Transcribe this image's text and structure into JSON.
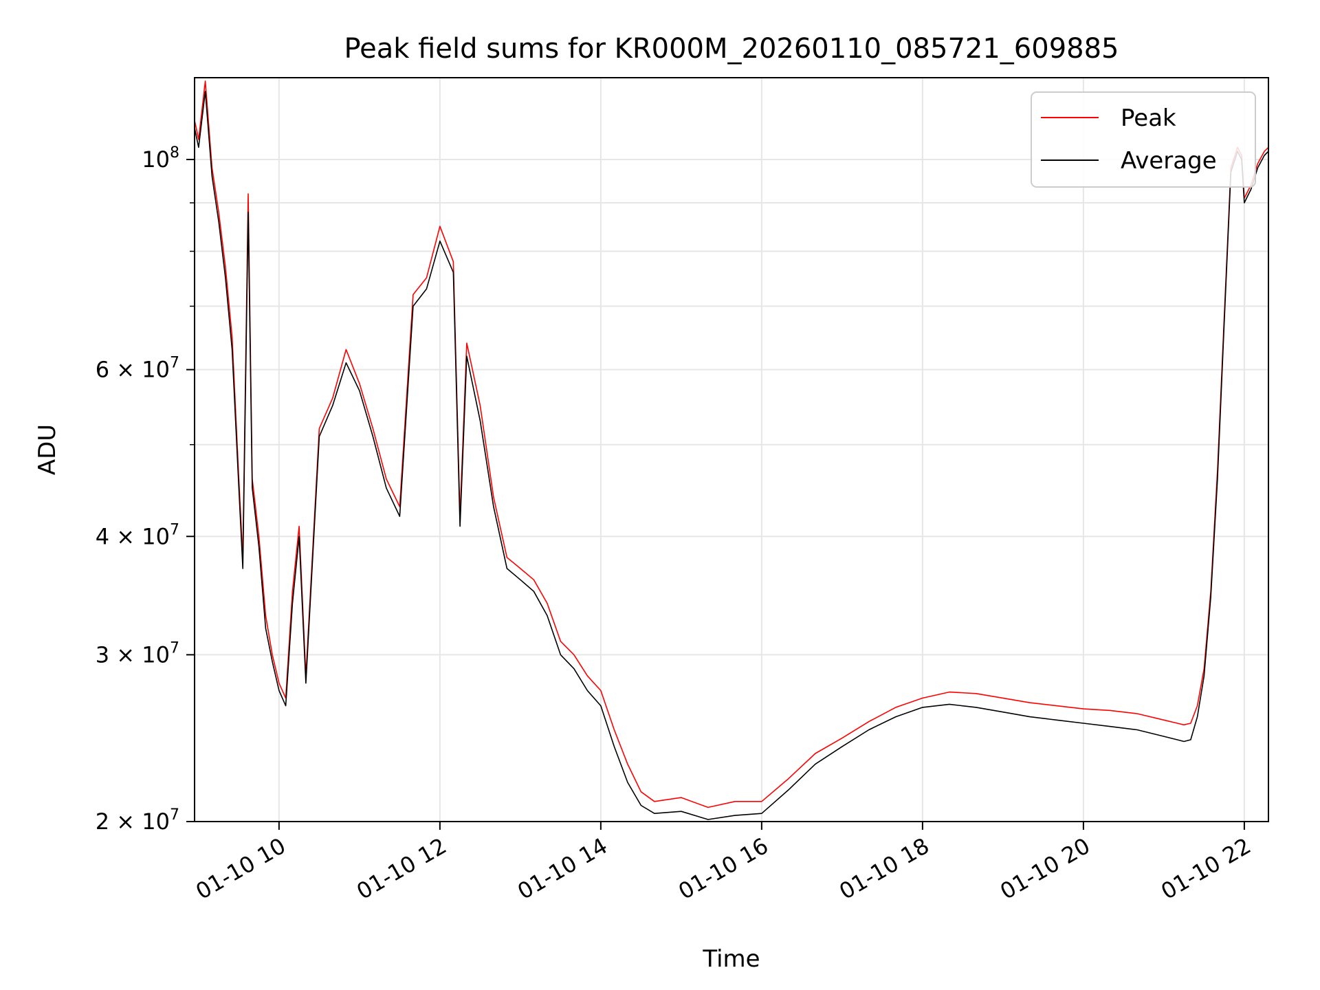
{
  "chart_data": {
    "type": "line",
    "title": "Peak field sums for KR000M_20260110_085721_609885",
    "xlabel": "Time",
    "ylabel": "ADU",
    "yscale": "log",
    "grid": true,
    "legend": "top-right",
    "xlim": [
      "2026-01-10 08:57",
      "2026-01-10 22:18"
    ],
    "ylim": [
      20000000,
      122000000
    ],
    "x_ticks": [
      {
        "t": "2026-01-10 10:00",
        "label": "01-10 10"
      },
      {
        "t": "2026-01-10 12:00",
        "label": "01-10 12"
      },
      {
        "t": "2026-01-10 14:00",
        "label": "01-10 14"
      },
      {
        "t": "2026-01-10 16:00",
        "label": "01-10 16"
      },
      {
        "t": "2026-01-10 18:00",
        "label": "01-10 18"
      },
      {
        "t": "2026-01-10 20:00",
        "label": "01-10 20"
      },
      {
        "t": "2026-01-10 22:00",
        "label": "01-10 22"
      }
    ],
    "y_ticks": [
      {
        "v": 20000000,
        "base": "2 × 10",
        "exp": "7"
      },
      {
        "v": 30000000,
        "base": "3 × 10",
        "exp": "7"
      },
      {
        "v": 40000000,
        "base": "4 × 10",
        "exp": "7"
      },
      {
        "v": 60000000,
        "base": "6 × 10",
        "exp": "7"
      },
      {
        "v": 100000000,
        "base": "10",
        "exp": "8"
      }
    ],
    "series": [
      {
        "name": "Peak",
        "color": "#ff0000",
        "x": [
          "2026-01-10 08:57",
          "2026-01-10 09:00",
          "2026-01-10 09:05",
          "2026-01-10 09:10",
          "2026-01-10 09:15",
          "2026-01-10 09:20",
          "2026-01-10 09:25",
          "2026-01-10 09:30",
          "2026-01-10 09:33",
          "2026-01-10 09:37",
          "2026-01-10 09:40",
          "2026-01-10 09:45",
          "2026-01-10 09:50",
          "2026-01-10 09:55",
          "2026-01-10 10:00",
          "2026-01-10 10:05",
          "2026-01-10 10:10",
          "2026-01-10 10:15",
          "2026-01-10 10:20",
          "2026-01-10 10:30",
          "2026-01-10 10:40",
          "2026-01-10 10:50",
          "2026-01-10 11:00",
          "2026-01-10 11:10",
          "2026-01-10 11:20",
          "2026-01-10 11:30",
          "2026-01-10 11:40",
          "2026-01-10 11:50",
          "2026-01-10 12:00",
          "2026-01-10 12:10",
          "2026-01-10 12:15",
          "2026-01-10 12:20",
          "2026-01-10 12:30",
          "2026-01-10 12:40",
          "2026-01-10 12:50",
          "2026-01-10 13:00",
          "2026-01-10 13:10",
          "2026-01-10 13:20",
          "2026-01-10 13:30",
          "2026-01-10 13:40",
          "2026-01-10 13:50",
          "2026-01-10 14:00",
          "2026-01-10 14:10",
          "2026-01-10 14:20",
          "2026-01-10 14:30",
          "2026-01-10 14:40",
          "2026-01-10 15:00",
          "2026-01-10 15:20",
          "2026-01-10 15:40",
          "2026-01-10 16:00",
          "2026-01-10 16:20",
          "2026-01-10 16:40",
          "2026-01-10 17:00",
          "2026-01-10 17:20",
          "2026-01-10 17:40",
          "2026-01-10 18:00",
          "2026-01-10 18:20",
          "2026-01-10 18:40",
          "2026-01-10 19:00",
          "2026-01-10 19:20",
          "2026-01-10 19:40",
          "2026-01-10 20:00",
          "2026-01-10 20:20",
          "2026-01-10 20:40",
          "2026-01-10 21:00",
          "2026-01-10 21:10",
          "2026-01-10 21:15",
          "2026-01-10 21:20",
          "2026-01-10 21:25",
          "2026-01-10 21:30",
          "2026-01-10 21:35",
          "2026-01-10 21:40",
          "2026-01-10 21:45",
          "2026-01-10 21:50",
          "2026-01-10 21:55",
          "2026-01-10 21:58",
          "2026-01-10 22:00",
          "2026-01-10 22:05",
          "2026-01-10 22:10",
          "2026-01-10 22:15",
          "2026-01-10 22:18"
        ],
        "y": [
          110000000,
          105000000,
          121000000,
          98000000,
          88000000,
          77000000,
          65000000,
          46000000,
          38000000,
          92000000,
          46000000,
          40000000,
          33000000,
          30000000,
          28000000,
          27000000,
          35000000,
          41000000,
          28500000,
          52000000,
          56000000,
          63000000,
          58000000,
          52000000,
          46000000,
          43000000,
          72000000,
          75000000,
          85000000,
          78000000,
          42000000,
          64000000,
          55000000,
          44000000,
          38000000,
          37000000,
          36000000,
          34000000,
          31000000,
          30000000,
          28500000,
          27500000,
          25000000,
          23000000,
          21500000,
          21000000,
          21200000,
          20700000,
          21000000,
          21000000,
          22200000,
          23600000,
          24500000,
          25500000,
          26400000,
          27000000,
          27400000,
          27300000,
          27000000,
          26700000,
          26500000,
          26300000,
          26200000,
          26000000,
          25600000,
          25400000,
          25300000,
          25400000,
          26500000,
          29000000,
          35000000,
          47000000,
          68000000,
          98000000,
          103000000,
          101000000,
          91000000,
          94000000,
          99000000,
          102000000,
          103000000
        ]
      },
      {
        "name": "Average",
        "color": "#000000",
        "x": [
          "2026-01-10 08:57",
          "2026-01-10 09:00",
          "2026-01-10 09:05",
          "2026-01-10 09:10",
          "2026-01-10 09:15",
          "2026-01-10 09:20",
          "2026-01-10 09:25",
          "2026-01-10 09:30",
          "2026-01-10 09:33",
          "2026-01-10 09:37",
          "2026-01-10 09:40",
          "2026-01-10 09:45",
          "2026-01-10 09:50",
          "2026-01-10 09:55",
          "2026-01-10 10:00",
          "2026-01-10 10:05",
          "2026-01-10 10:10",
          "2026-01-10 10:15",
          "2026-01-10 10:20",
          "2026-01-10 10:30",
          "2026-01-10 10:40",
          "2026-01-10 10:50",
          "2026-01-10 11:00",
          "2026-01-10 11:10",
          "2026-01-10 11:20",
          "2026-01-10 11:30",
          "2026-01-10 11:40",
          "2026-01-10 11:50",
          "2026-01-10 12:00",
          "2026-01-10 12:10",
          "2026-01-10 12:15",
          "2026-01-10 12:20",
          "2026-01-10 12:30",
          "2026-01-10 12:40",
          "2026-01-10 12:50",
          "2026-01-10 13:00",
          "2026-01-10 13:10",
          "2026-01-10 13:20",
          "2026-01-10 13:30",
          "2026-01-10 13:40",
          "2026-01-10 13:50",
          "2026-01-10 14:00",
          "2026-01-10 14:10",
          "2026-01-10 14:20",
          "2026-01-10 14:30",
          "2026-01-10 14:40",
          "2026-01-10 15:00",
          "2026-01-10 15:20",
          "2026-01-10 15:40",
          "2026-01-10 16:00",
          "2026-01-10 16:20",
          "2026-01-10 16:40",
          "2026-01-10 17:00",
          "2026-01-10 17:20",
          "2026-01-10 17:40",
          "2026-01-10 18:00",
          "2026-01-10 18:20",
          "2026-01-10 18:40",
          "2026-01-10 19:00",
          "2026-01-10 19:20",
          "2026-01-10 19:40",
          "2026-01-10 20:00",
          "2026-01-10 20:20",
          "2026-01-10 20:40",
          "2026-01-10 21:00",
          "2026-01-10 21:10",
          "2026-01-10 21:15",
          "2026-01-10 21:20",
          "2026-01-10 21:25",
          "2026-01-10 21:30",
          "2026-01-10 21:35",
          "2026-01-10 21:40",
          "2026-01-10 21:45",
          "2026-01-10 21:50",
          "2026-01-10 21:55",
          "2026-01-10 21:58",
          "2026-01-10 22:00",
          "2026-01-10 22:05",
          "2026-01-10 22:10",
          "2026-01-10 22:15",
          "2026-01-10 22:18"
        ],
        "y": [
          108000000,
          103000000,
          118000000,
          96000000,
          86000000,
          75000000,
          63000000,
          45000000,
          37000000,
          88000000,
          45000000,
          39000000,
          32000000,
          29500000,
          27500000,
          26500000,
          34000000,
          40000000,
          28000000,
          51000000,
          55000000,
          61000000,
          57000000,
          51000000,
          45000000,
          42000000,
          70000000,
          73000000,
          82000000,
          76000000,
          41000000,
          62000000,
          53000000,
          43000000,
          37000000,
          36000000,
          35000000,
          33000000,
          30000000,
          29000000,
          27500000,
          26500000,
          24000000,
          22000000,
          20800000,
          20400000,
          20500000,
          20100000,
          20300000,
          20400000,
          21600000,
          23000000,
          24000000,
          25000000,
          25800000,
          26400000,
          26600000,
          26400000,
          26100000,
          25800000,
          25600000,
          25400000,
          25200000,
          25000000,
          24600000,
          24400000,
          24300000,
          24400000,
          25800000,
          28500000,
          34500000,
          46000000,
          67000000,
          97000000,
          102000000,
          100000000,
          90000000,
          93000000,
          98000000,
          101000000,
          102000000
        ]
      }
    ]
  }
}
